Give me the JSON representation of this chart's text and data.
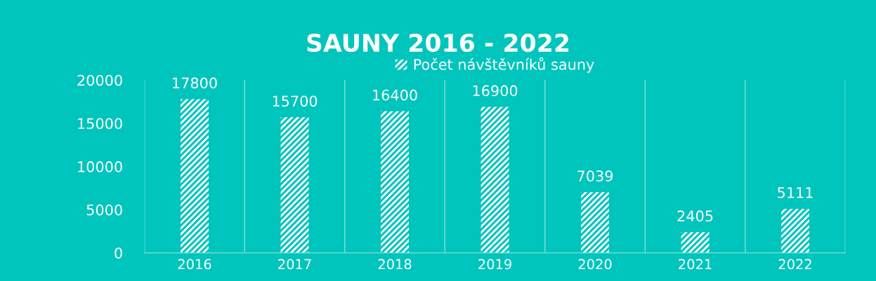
{
  "chart_data": {
    "type": "bar",
    "title": "SAUNY 2016 - 2022",
    "categories": [
      "2016",
      "2017",
      "2018",
      "2019",
      "2020",
      "2021",
      "2022"
    ],
    "series": [
      {
        "name": "Počet návštěvníků sauny",
        "color": "#ffffff",
        "values": [
          17800,
          15700,
          16400,
          16900,
          7039,
          2405,
          5111
        ]
      }
    ],
    "ylim": [
      0,
      20000
    ],
    "yticks": [
      0,
      5000,
      10000,
      15000,
      20000
    ],
    "grid": "x",
    "legend": "top",
    "data_labels": true
  }
}
